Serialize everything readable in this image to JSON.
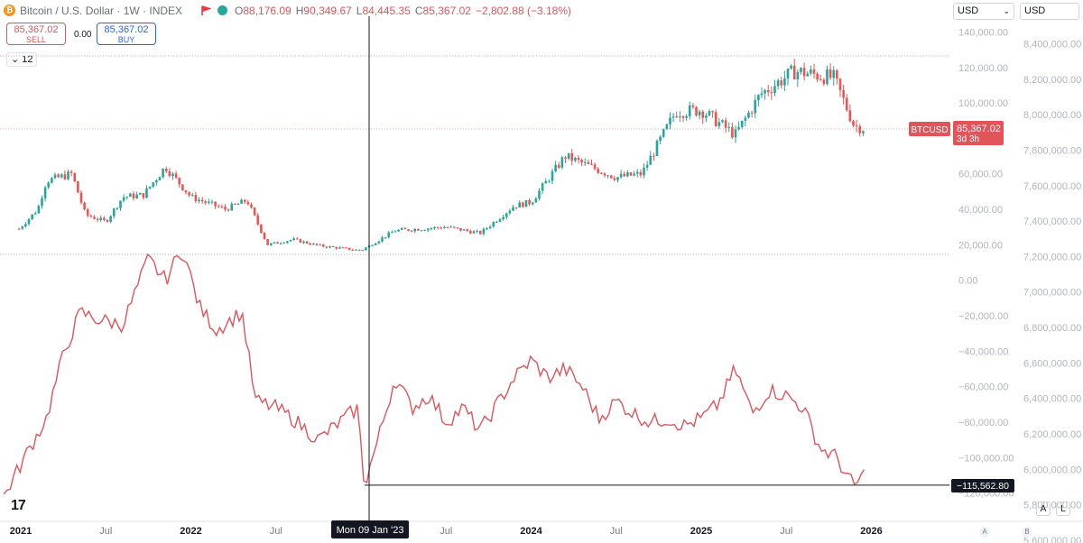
{
  "header": {
    "logo_text": "₿",
    "title": "Bitcoin / U.S. Dollar · 1W · INDEX",
    "ohlc": [
      {
        "k": "O",
        "v": "88,176.09"
      },
      {
        "k": "H",
        "v": "90,349.67"
      },
      {
        "k": "L",
        "v": "84,445.35"
      },
      {
        "k": "C",
        "v": "85,367.02"
      },
      {
        "k": "",
        "v": "−2,802.88 (−3.18%)"
      }
    ],
    "sell_price": "85,367.02",
    "sell_label": "SELL",
    "spread": "0.00",
    "buy_price": "85,367.02",
    "buy_label": "BUY",
    "collapse_value": "12"
  },
  "scale_selectors": {
    "left": "USD",
    "right": "USD"
  },
  "colors": {
    "up": "#26a69a",
    "down": "#ef5350",
    "line": "#e0545a",
    "grid": "#e0e3eb"
  },
  "chart_data": {
    "type": "candlestick+line",
    "x_axis_labels": [
      "2021",
      "Jul",
      "2022",
      "Jul",
      "Jul",
      "2024",
      "Jul",
      "2025",
      "Jul",
      "2026"
    ],
    "crosshair_label": "Mon 09 Jan '23",
    "price_axis_ticks": [
      "140,000.00",
      "120,000.00",
      "100,000.00",
      "80,000.00",
      "60,000.00",
      "40,000.00",
      "20,000.00",
      "0.00",
      "−20,000.00",
      "−40,000.00",
      "−60,000.00",
      "−80,000.00",
      "−100,000.00",
      "−120,000.00"
    ],
    "right_axis_ticks": [
      "8,400,000.00",
      "8,200,000.00",
      "8,000,000.00",
      "7,800,000.00",
      "7,600,000.00",
      "7,400,000.00",
      "7,200,000.00",
      "7,000,000.00",
      "6,800,000.00",
      "6,600,000.00",
      "6,400,000.00",
      "6,200,000.00",
      "6,000,000.00",
      "5,800,000.00",
      "5,600,000.00"
    ],
    "last_price_label": "BTCUSD",
    "last_price": "85,367.02",
    "countdown": "3d 3h",
    "line_last_value": "−115,562.80",
    "btc_close_anchors": [
      [
        2020.99,
        29000
      ],
      [
        2021.1,
        40000
      ],
      [
        2021.15,
        56000
      ],
      [
        2021.3,
        60000
      ],
      [
        2021.38,
        37000
      ],
      [
        2021.5,
        33000
      ],
      [
        2021.6,
        47000
      ],
      [
        2021.72,
        48000
      ],
      [
        2021.85,
        64000
      ],
      [
        2022.0,
        47000
      ],
      [
        2022.2,
        40000
      ],
      [
        2022.33,
        45000
      ],
      [
        2022.45,
        20000
      ],
      [
        2022.6,
        23000
      ],
      [
        2022.75,
        19500
      ],
      [
        2023.0,
        16800
      ],
      [
        2023.2,
        28000
      ],
      [
        2023.5,
        30000
      ],
      [
        2023.7,
        26500
      ],
      [
        2023.9,
        42000
      ],
      [
        2024.0,
        44000
      ],
      [
        2024.2,
        70000
      ],
      [
        2024.5,
        58000
      ],
      [
        2024.65,
        60000
      ],
      [
        2024.85,
        95000
      ],
      [
        2025.0,
        96000
      ],
      [
        2025.2,
        82000
      ],
      [
        2025.35,
        105000
      ],
      [
        2025.55,
        118000
      ],
      [
        2025.78,
        114000
      ],
      [
        2025.9,
        87000
      ],
      [
        2025.97,
        85367
      ]
    ],
    "line_series_anchors": [
      [
        2020.9,
        -122000
      ],
      [
        2021.05,
        -95000
      ],
      [
        2021.15,
        -78000
      ],
      [
        2021.25,
        -42000
      ],
      [
        2021.35,
        -18000
      ],
      [
        2021.45,
        -22000
      ],
      [
        2021.6,
        -25000
      ],
      [
        2021.75,
        12000
      ],
      [
        2021.85,
        0
      ],
      [
        2021.95,
        18000
      ],
      [
        2022.05,
        -15000
      ],
      [
        2022.15,
        -28000
      ],
      [
        2022.3,
        -18000
      ],
      [
        2022.38,
        -68000
      ],
      [
        2022.5,
        -72000
      ],
      [
        2022.6,
        -78000
      ],
      [
        2022.75,
        -90000
      ],
      [
        2022.85,
        -82000
      ],
      [
        2022.98,
        -72000
      ],
      [
        2023.02,
        -115562.8
      ],
      [
        2023.1,
        -90000
      ],
      [
        2023.2,
        -55000
      ],
      [
        2023.3,
        -72000
      ],
      [
        2023.4,
        -65000
      ],
      [
        2023.5,
        -80000
      ],
      [
        2023.6,
        -72000
      ],
      [
        2023.7,
        -85000
      ],
      [
        2023.8,
        -70000
      ],
      [
        2023.9,
        -55000
      ],
      [
        2024.0,
        -45000
      ],
      [
        2024.1,
        -55000
      ],
      [
        2024.2,
        -50000
      ],
      [
        2024.3,
        -60000
      ],
      [
        2024.4,
        -78000
      ],
      [
        2024.5,
        -68000
      ],
      [
        2024.6,
        -75000
      ],
      [
        2024.7,
        -80000
      ],
      [
        2024.8,
        -78000
      ],
      [
        2024.9,
        -82000
      ],
      [
        2025.0,
        -78000
      ],
      [
        2025.1,
        -70000
      ],
      [
        2025.2,
        -50000
      ],
      [
        2025.3,
        -75000
      ],
      [
        2025.4,
        -62000
      ],
      [
        2025.5,
        -65000
      ],
      [
        2025.6,
        -72000
      ],
      [
        2025.7,
        -95000
      ],
      [
        2025.8,
        -100000
      ],
      [
        2025.85,
        -110000
      ],
      [
        2025.9,
        -116000
      ],
      [
        2025.97,
        -108000
      ]
    ]
  }
}
